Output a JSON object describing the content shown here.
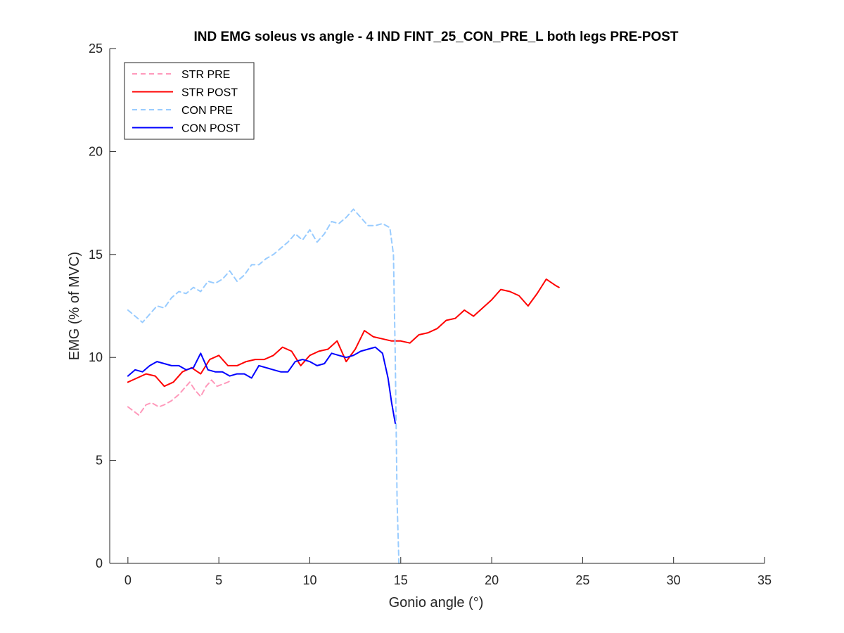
{
  "chart_data": {
    "type": "line",
    "title": "IND EMG soleus vs angle - 4 IND FINT_25_CON_PRE_L both legs PRE-POST",
    "xlabel": "Gonio angle (°)",
    "ylabel": "EMG (% of MVC)",
    "xlim": [
      -1,
      35
    ],
    "ylim": [
      0,
      25
    ],
    "xticks": [
      0,
      5,
      10,
      15,
      20,
      25,
      30,
      35
    ],
    "yticks": [
      0,
      5,
      10,
      15,
      20,
      25
    ],
    "grid": false,
    "legend_position": "top-left",
    "series": [
      {
        "name": "STR PRE",
        "color": "#ff99bb",
        "style": "dashed",
        "x": [
          0,
          0.3,
          0.6,
          1.0,
          1.3,
          1.7,
          2.0,
          2.4,
          2.8,
          3.1,
          3.4,
          3.7,
          4.0,
          4.3,
          4.6,
          4.9,
          5.2,
          5.5,
          5.7
        ],
        "y": [
          7.6,
          7.4,
          7.2,
          7.7,
          7.8,
          7.6,
          7.7,
          7.9,
          8.2,
          8.5,
          8.8,
          8.4,
          8.1,
          8.6,
          8.9,
          8.6,
          8.7,
          8.8,
          8.9
        ]
      },
      {
        "name": "STR POST",
        "color": "#ff0000",
        "style": "solid",
        "x": [
          0,
          0.5,
          1.0,
          1.5,
          2.0,
          2.5,
          3.0,
          3.5,
          4.0,
          4.5,
          5.0,
          5.5,
          6.0,
          6.5,
          7.0,
          7.5,
          8.0,
          8.5,
          9.0,
          9.5,
          10.0,
          10.5,
          11.0,
          11.5,
          12.0,
          12.5,
          13.0,
          13.5,
          14.0,
          14.5,
          15.0,
          15.5,
          16.0,
          16.5,
          17.0,
          17.5,
          18.0,
          18.5,
          19.0,
          19.5,
          20.0,
          20.5,
          21.0,
          21.5,
          22.0,
          22.5,
          23.0,
          23.5,
          23.7
        ],
        "y": [
          8.8,
          9.0,
          9.2,
          9.1,
          8.6,
          8.8,
          9.3,
          9.5,
          9.2,
          9.9,
          10.1,
          9.6,
          9.6,
          9.8,
          9.9,
          9.9,
          10.1,
          10.5,
          10.3,
          9.6,
          10.1,
          10.3,
          10.4,
          10.8,
          9.8,
          10.4,
          11.3,
          11.0,
          10.9,
          10.8,
          10.8,
          10.7,
          11.1,
          11.2,
          11.4,
          11.8,
          11.9,
          12.3,
          12.0,
          12.4,
          12.8,
          13.3,
          13.2,
          13.0,
          12.5,
          13.1,
          13.8,
          13.5,
          13.4
        ]
      },
      {
        "name": "CON PRE",
        "color": "#99ccff",
        "style": "dashed",
        "x": [
          0,
          0.4,
          0.8,
          1.2,
          1.6,
          2.0,
          2.4,
          2.8,
          3.2,
          3.6,
          4.0,
          4.4,
          4.8,
          5.2,
          5.6,
          6.0,
          6.4,
          6.8,
          7.2,
          7.6,
          8.0,
          8.4,
          8.8,
          9.2,
          9.6,
          10.0,
          10.4,
          10.8,
          11.2,
          11.6,
          12.0,
          12.4,
          12.8,
          13.2,
          13.6,
          14.0,
          14.4,
          14.6,
          14.7,
          14.8,
          14.9
        ],
        "y": [
          12.3,
          12.0,
          11.7,
          12.1,
          12.5,
          12.4,
          12.9,
          13.2,
          13.1,
          13.4,
          13.2,
          13.7,
          13.6,
          13.8,
          14.2,
          13.7,
          14.0,
          14.5,
          14.5,
          14.8,
          15.0,
          15.3,
          15.6,
          16.0,
          15.7,
          16.2,
          15.6,
          16.0,
          16.6,
          16.5,
          16.8,
          17.2,
          16.8,
          16.4,
          16.4,
          16.5,
          16.3,
          15.0,
          10.0,
          3.0,
          0
        ]
      },
      {
        "name": "CON POST",
        "color": "#0000ff",
        "style": "solid",
        "x": [
          0,
          0.4,
          0.8,
          1.2,
          1.6,
          2.0,
          2.4,
          2.8,
          3.2,
          3.6,
          4.0,
          4.4,
          4.8,
          5.2,
          5.6,
          6.0,
          6.4,
          6.8,
          7.2,
          7.6,
          8.0,
          8.4,
          8.8,
          9.2,
          9.6,
          10.0,
          10.4,
          10.8,
          11.2,
          11.6,
          12.0,
          12.4,
          12.8,
          13.2,
          13.6,
          14.0,
          14.3,
          14.5,
          14.7
        ],
        "y": [
          9.1,
          9.4,
          9.3,
          9.6,
          9.8,
          9.7,
          9.6,
          9.6,
          9.4,
          9.5,
          10.2,
          9.4,
          9.3,
          9.3,
          9.1,
          9.2,
          9.2,
          9.0,
          9.6,
          9.5,
          9.4,
          9.3,
          9.3,
          9.8,
          9.9,
          9.8,
          9.6,
          9.7,
          10.2,
          10.1,
          10.0,
          10.1,
          10.3,
          10.4,
          10.5,
          10.2,
          9.0,
          7.8,
          6.8
        ]
      }
    ]
  }
}
